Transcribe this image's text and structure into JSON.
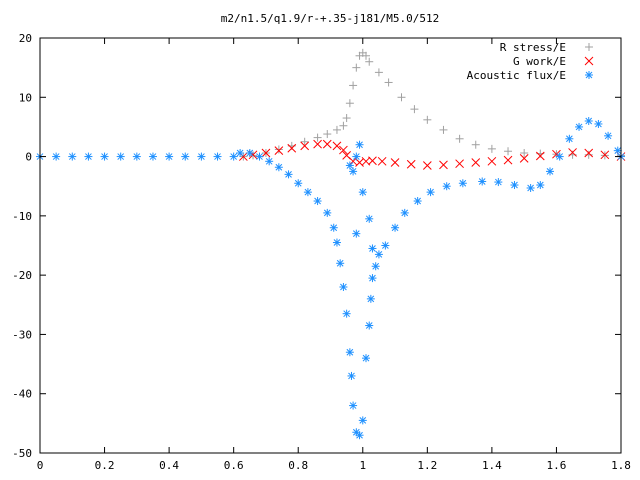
{
  "chart_data": {
    "type": "scatter",
    "title": "m2/n1.5/q1.9/r-+.35-j181/M5.0/512",
    "xlabel": "",
    "ylabel": "",
    "xlim": [
      0,
      1.8
    ],
    "ylim": [
      -50,
      20
    ],
    "xticks": [
      "0",
      "0.2",
      "0.4",
      "0.6",
      "0.8",
      "1",
      "1.2",
      "1.4",
      "1.6",
      "1.8"
    ],
    "yticks": [
      "20",
      "10",
      "0",
      "-10",
      "-20",
      "-30",
      "-40",
      "-50"
    ],
    "grid": false,
    "legend_position": "top-right",
    "series": [
      {
        "name": "R stress/E",
        "marker": "plus",
        "color": "#a0a0a0",
        "points": [
          [
            0.63,
            0
          ],
          [
            0.66,
            0.2
          ],
          [
            0.7,
            0.6
          ],
          [
            0.74,
            1.2
          ],
          [
            0.78,
            1.8
          ],
          [
            0.82,
            2.5
          ],
          [
            0.86,
            3.2
          ],
          [
            0.89,
            3.8
          ],
          [
            0.92,
            4.5
          ],
          [
            0.94,
            5.2
          ],
          [
            0.95,
            6.5
          ],
          [
            0.96,
            9
          ],
          [
            0.97,
            12
          ],
          [
            0.98,
            15
          ],
          [
            0.99,
            17
          ],
          [
            1.0,
            17.5
          ],
          [
            1.01,
            17
          ],
          [
            1.02,
            16
          ],
          [
            1.05,
            14.2
          ],
          [
            1.08,
            12.5
          ],
          [
            1.12,
            10
          ],
          [
            1.16,
            8
          ],
          [
            1.2,
            6.2
          ],
          [
            1.25,
            4.5
          ],
          [
            1.3,
            3
          ],
          [
            1.35,
            2
          ],
          [
            1.4,
            1.3
          ],
          [
            1.45,
            0.9
          ],
          [
            1.5,
            0.6
          ],
          [
            1.55,
            0.5
          ],
          [
            1.6,
            0.4
          ],
          [
            1.65,
            0.3
          ],
          [
            1.7,
            0.3
          ],
          [
            1.75,
            0.2
          ],
          [
            1.8,
            0.2
          ]
        ]
      },
      {
        "name": "G work/E",
        "marker": "cross",
        "color": "#ff0000",
        "points": [
          [
            0.63,
            0
          ],
          [
            0.66,
            0.3
          ],
          [
            0.7,
            0.6
          ],
          [
            0.74,
            1
          ],
          [
            0.78,
            1.4
          ],
          [
            0.82,
            1.8
          ],
          [
            0.86,
            2.1
          ],
          [
            0.89,
            2.1
          ],
          [
            0.92,
            1.8
          ],
          [
            0.94,
            1.1
          ],
          [
            0.95,
            0.2
          ],
          [
            0.97,
            -0.8
          ],
          [
            0.99,
            -1
          ],
          [
            1.01,
            -0.8
          ],
          [
            1.03,
            -0.7
          ],
          [
            1.06,
            -0.8
          ],
          [
            1.1,
            -1
          ],
          [
            1.15,
            -1.3
          ],
          [
            1.2,
            -1.5
          ],
          [
            1.25,
            -1.4
          ],
          [
            1.3,
            -1.2
          ],
          [
            1.35,
            -1
          ],
          [
            1.4,
            -0.8
          ],
          [
            1.45,
            -0.6
          ],
          [
            1.5,
            -0.3
          ],
          [
            1.55,
            0.1
          ],
          [
            1.6,
            0.4
          ],
          [
            1.65,
            0.7
          ],
          [
            1.7,
            0.6
          ],
          [
            1.75,
            0.3
          ],
          [
            1.8,
            0
          ]
        ]
      },
      {
        "name": "Acoustic flux/E",
        "marker": "star",
        "color": "#1e90ff",
        "points": [
          [
            0,
            0
          ],
          [
            0.05,
            0
          ],
          [
            0.1,
            0
          ],
          [
            0.15,
            0
          ],
          [
            0.2,
            0
          ],
          [
            0.25,
            0
          ],
          [
            0.3,
            0
          ],
          [
            0.35,
            0
          ],
          [
            0.4,
            0
          ],
          [
            0.45,
            0
          ],
          [
            0.5,
            0
          ],
          [
            0.55,
            0
          ],
          [
            0.6,
            0
          ],
          [
            0.62,
            0.6
          ],
          [
            0.65,
            0.6
          ],
          [
            0.68,
            0
          ],
          [
            0.71,
            -0.8
          ],
          [
            0.74,
            -1.8
          ],
          [
            0.77,
            -3
          ],
          [
            0.8,
            -4.5
          ],
          [
            0.83,
            -6
          ],
          [
            0.86,
            -7.5
          ],
          [
            0.89,
            -9.5
          ],
          [
            0.91,
            -12
          ],
          [
            0.92,
            -14.5
          ],
          [
            0.93,
            -18
          ],
          [
            0.94,
            -22
          ],
          [
            0.95,
            -26.5
          ],
          [
            0.96,
            -33
          ],
          [
            0.965,
            -37
          ],
          [
            0.97,
            -42
          ],
          [
            0.98,
            -46.5
          ],
          [
            0.99,
            -47
          ],
          [
            1.0,
            -44.5
          ],
          [
            1.01,
            -34
          ],
          [
            1.02,
            -28.5
          ],
          [
            1.025,
            -24
          ],
          [
            1.03,
            -20.5
          ],
          [
            1.04,
            -18.5
          ],
          [
            1.05,
            -16.5
          ],
          [
            1.07,
            -15
          ],
          [
            1.1,
            -12
          ],
          [
            1.13,
            -9.5
          ],
          [
            1.17,
            -7.5
          ],
          [
            1.21,
            -6
          ],
          [
            1.26,
            -5
          ],
          [
            1.31,
            -4.5
          ],
          [
            1.37,
            -4.2
          ],
          [
            1.42,
            -4.3
          ],
          [
            1.47,
            -4.8
          ],
          [
            1.52,
            -5.3
          ],
          [
            1.55,
            -4.8
          ],
          [
            1.58,
            -2.5
          ],
          [
            1.61,
            0
          ],
          [
            1.64,
            3
          ],
          [
            1.67,
            5
          ],
          [
            1.7,
            6
          ],
          [
            1.73,
            5.5
          ],
          [
            1.76,
            3.5
          ],
          [
            1.79,
            1
          ],
          [
            1.8,
            0
          ],
          [
            0.96,
            -1.5
          ],
          [
            0.97,
            -2.5
          ],
          [
            0.98,
            0
          ],
          [
            0.99,
            2
          ],
          [
            0.98,
            -13
          ],
          [
            1.0,
            -6
          ],
          [
            1.02,
            -10.5
          ],
          [
            1.03,
            -15.5
          ]
        ]
      }
    ]
  }
}
